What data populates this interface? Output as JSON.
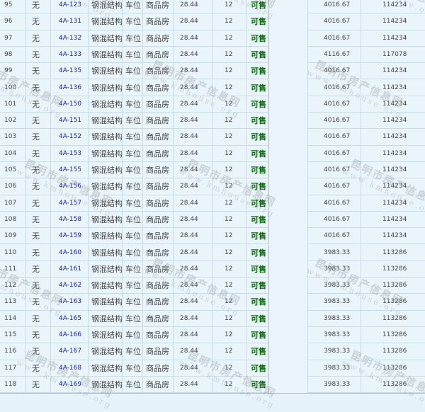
{
  "table": {
    "rows": [
      [
        "95",
        "无",
        "4A-123",
        "钢混结构",
        "车位",
        "商品房",
        "28.44",
        "12",
        "可售",
        "4016.67",
        "114234"
      ],
      [
        "96",
        "无",
        "4A-131",
        "钢混结构",
        "车位",
        "商品房",
        "28.44",
        "12",
        "可售",
        "4016.67",
        "114234"
      ],
      [
        "97",
        "无",
        "4A-132",
        "钢混结构",
        "车位",
        "商品房",
        "28.44",
        "12",
        "可售",
        "4016.67",
        "114234"
      ],
      [
        "98",
        "无",
        "4A-133",
        "钢混结构",
        "车位",
        "商品房",
        "28.44",
        "12",
        "可售",
        "4116.67",
        "117078"
      ],
      [
        "99",
        "无",
        "4A-135",
        "钢混结构",
        "车位",
        "商品房",
        "28.44",
        "12",
        "可售",
        "4016.67",
        "114234"
      ],
      [
        "100",
        "无",
        "4A-136",
        "钢混结构",
        "车位",
        "商品房",
        "28.44",
        "12",
        "可售",
        "4016.67",
        "114234"
      ],
      [
        "101",
        "无",
        "4A-150",
        "钢混结构",
        "车位",
        "商品房",
        "28.44",
        "12",
        "可售",
        "4016.67",
        "114234"
      ],
      [
        "102",
        "无",
        "4A-151",
        "钢混结构",
        "车位",
        "商品房",
        "28.44",
        "12",
        "可售",
        "4016.67",
        "114234"
      ],
      [
        "103",
        "无",
        "4A-152",
        "钢混结构",
        "车位",
        "商品房",
        "28.44",
        "12",
        "可售",
        "4016.67",
        "114234"
      ],
      [
        "104",
        "无",
        "4A-153",
        "钢混结构",
        "车位",
        "商品房",
        "28.44",
        "12",
        "可售",
        "4016.67",
        "114234"
      ],
      [
        "105",
        "无",
        "4A-155",
        "钢混结构",
        "车位",
        "商品房",
        "28.44",
        "12",
        "可售",
        "4016.67",
        "114234"
      ],
      [
        "106",
        "无",
        "4A-156",
        "钢混结构",
        "车位",
        "商品房",
        "28.44",
        "12",
        "可售",
        "4016.67",
        "114234"
      ],
      [
        "107",
        "无",
        "4A-157",
        "钢混结构",
        "车位",
        "商品房",
        "28.44",
        "12",
        "可售",
        "4016.67",
        "114234"
      ],
      [
        "108",
        "无",
        "4A-158",
        "钢混结构",
        "车位",
        "商品房",
        "28.44",
        "12",
        "可售",
        "4016.67",
        "114234"
      ],
      [
        "109",
        "无",
        "4A-159",
        "钢混结构",
        "车位",
        "商品房",
        "28.44",
        "12",
        "可售",
        "4016.67",
        "114234"
      ],
      [
        "110",
        "无",
        "4A-160",
        "钢混结构",
        "车位",
        "商品房",
        "28.44",
        "12",
        "可售",
        "3983.33",
        "113286"
      ],
      [
        "111",
        "无",
        "4A-161",
        "钢混结构",
        "车位",
        "商品房",
        "28.44",
        "12",
        "可售",
        "3983.33",
        "113286"
      ],
      [
        "112",
        "无",
        "4A-162",
        "钢混结构",
        "车位",
        "商品房",
        "28.44",
        "12",
        "可售",
        "3983.33",
        "113286"
      ],
      [
        "113",
        "无",
        "4A-163",
        "钢混结构",
        "车位",
        "商品房",
        "28.44",
        "12",
        "可售",
        "3983.33",
        "113286"
      ],
      [
        "114",
        "无",
        "4A-165",
        "钢混结构",
        "车位",
        "商品房",
        "28.44",
        "12",
        "可售",
        "3983.33",
        "113286"
      ],
      [
        "115",
        "无",
        "4A-166",
        "钢混结构",
        "车位",
        "商品房",
        "28.44",
        "12",
        "可售",
        "3983.33",
        "113286"
      ],
      [
        "116",
        "无",
        "4A-167",
        "钢混结构",
        "车位",
        "商品房",
        "28.44",
        "12",
        "可售",
        "3983.33",
        "113286"
      ],
      [
        "117",
        "无",
        "4A-168",
        "钢混结构",
        "车位",
        "商品房",
        "28.44",
        "12",
        "可售",
        "3983.33",
        "113286"
      ],
      [
        "118",
        "无",
        "4A-169",
        "钢混结构",
        "车位",
        "商品房",
        "28.44",
        "12",
        "可售",
        "3983.33",
        "113286"
      ]
    ]
  },
  "watermark": {
    "title": "昆明市房产信息网",
    "url": "www.kmhouse.org"
  },
  "colors": {
    "background": "#e9f5fb",
    "code_text": "#1a22b0",
    "status_text": "#0a6b0a",
    "border": "#c9dbe4"
  }
}
